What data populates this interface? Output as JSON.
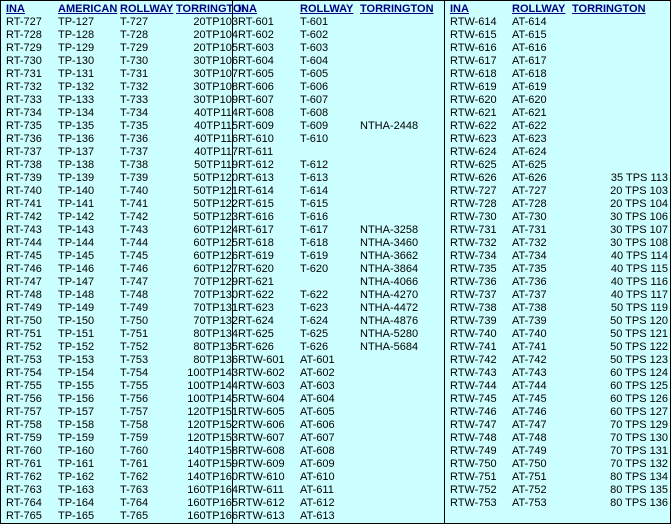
{
  "headers": {
    "ina": "INA",
    "american": "AMERICAN",
    "rollway": "ROLLWAY",
    "torrington": "TORRINGTON"
  },
  "panel1": {
    "columns": [
      "INA",
      "AMERICAN",
      "ROLLWAY",
      "TORRINGTON"
    ],
    "rows": [
      [
        "RT-727",
        "TP-127",
        "T-727",
        "20TP103"
      ],
      [
        "RT-728",
        "TP-128",
        "T-728",
        "20TP104"
      ],
      [
        "RT-729",
        "TP-129",
        "T-729",
        "20TP105"
      ],
      [
        "RT-730",
        "TP-130",
        "T-730",
        "30TP106"
      ],
      [
        "RT-731",
        "TP-131",
        "T-731",
        "30TP107"
      ],
      [
        "RT-732",
        "TP-132",
        "T-732",
        "30TP108"
      ],
      [
        "RT-733",
        "TP-133",
        "T-733",
        "30TP109"
      ],
      [
        "RT-734",
        "TP-134",
        "T-734",
        "40TP114"
      ],
      [
        "RT-735",
        "TP-135",
        "T-735",
        "40TP115"
      ],
      [
        "RT-736",
        "TP-136",
        "T-736",
        "40TP116"
      ],
      [
        "RT-737",
        "TP-137",
        "T-737",
        "40TP117"
      ],
      [
        "RT-738",
        "TP-138",
        "T-738",
        "50TP119"
      ],
      [
        "RT-739",
        "TP-139",
        "T-739",
        "50TP120"
      ],
      [
        "RT-740",
        "TP-140",
        "T-740",
        "50TP121"
      ],
      [
        "RT-741",
        "TP-141",
        "T-741",
        "50TP122"
      ],
      [
        "RT-742",
        "TP-142",
        "T-742",
        "50TP123"
      ],
      [
        "RT-743",
        "TP-143",
        "T-743",
        "60TP124"
      ],
      [
        "RT-744",
        "TP-144",
        "T-744",
        "60TP125"
      ],
      [
        "RT-745",
        "TP-145",
        "T-745",
        "60TP126"
      ],
      [
        "RT-746",
        "TP-146",
        "T-746",
        "60TP127"
      ],
      [
        "RT-747",
        "TP-147",
        "T-747",
        "70TP129"
      ],
      [
        "RT-748",
        "TP-148",
        "T-748",
        "70TP130"
      ],
      [
        "RT-749",
        "TP-149",
        "T-749",
        "70TP131"
      ],
      [
        "RT-750",
        "TP-150",
        "T-750",
        "70TP132"
      ],
      [
        "RT-751",
        "TP-151",
        "T-751",
        "80TP134"
      ],
      [
        "RT-752",
        "TP-152",
        "T-752",
        "80TP135"
      ],
      [
        "RT-753",
        "TP-153",
        "T-753",
        "80TP136"
      ],
      [
        "RT-754",
        "TP-154",
        "T-754",
        "100TP143"
      ],
      [
        "RT-755",
        "TP-155",
        "T-755",
        "100TP144"
      ],
      [
        "RT-756",
        "TP-156",
        "T-756",
        "100TP145"
      ],
      [
        "RT-757",
        "TP-157",
        "T-757",
        "120TP151"
      ],
      [
        "RT-758",
        "TP-158",
        "T-758",
        "120TP152"
      ],
      [
        "RT-759",
        "TP-159",
        "T-759",
        "120TP153"
      ],
      [
        "RT-760",
        "TP-160",
        "T-760",
        "140TP158"
      ],
      [
        "RT-761",
        "TP-161",
        "T-761",
        "140TP159"
      ],
      [
        "RT-762",
        "TP-162",
        "T-762",
        "140TP160"
      ],
      [
        "RT-763",
        "TP-163",
        "T-763",
        "160TP164"
      ],
      [
        "RT-764",
        "TP-164",
        "T-764",
        "160TP165"
      ],
      [
        "RT-765",
        "TP-165",
        "T-765",
        "160TP166"
      ]
    ]
  },
  "panel2": {
    "columns": [
      "INA",
      "ROLLWAY",
      "TORRINGTON"
    ],
    "rows": [
      [
        "RT-601",
        "T-601",
        ""
      ],
      [
        "RT-602",
        "T-602",
        ""
      ],
      [
        "RT-603",
        "T-603",
        ""
      ],
      [
        "RT-604",
        "T-604",
        ""
      ],
      [
        "RT-605",
        "T-605",
        ""
      ],
      [
        "RT-606",
        "T-606",
        ""
      ],
      [
        "RT-607",
        "T-607",
        ""
      ],
      [
        "RT-608",
        "T-608",
        ""
      ],
      [
        "RT-609",
        "T-609",
        "NTHA-2448"
      ],
      [
        "RT-610",
        "T-610",
        ""
      ],
      [
        "RT-611",
        "",
        ""
      ],
      [
        "RT-612",
        "T-612",
        ""
      ],
      [
        "RT-613",
        "T-613",
        ""
      ],
      [
        "RT-614",
        "T-614",
        ""
      ],
      [
        "RT-615",
        "T-615",
        ""
      ],
      [
        "RT-616",
        "T-616",
        ""
      ],
      [
        "RT-617",
        "T-617",
        "NTHA-3258"
      ],
      [
        "RT-618",
        "T-618",
        "NTHA-3460"
      ],
      [
        "RT-619",
        "T-619",
        "NTHA-3662"
      ],
      [
        "RT-620",
        "T-620",
        "NTHA-3864"
      ],
      [
        "RT-621",
        "",
        "NTHA-4066"
      ],
      [
        "RT-622",
        "T-622",
        "NTHA-4270"
      ],
      [
        "RT-623",
        "T-623",
        "NTHA-4472"
      ],
      [
        "RT-624",
        "T-624",
        "NTHA-4876"
      ],
      [
        "RT-625",
        "T-625",
        "NTHA-5280"
      ],
      [
        "RT-626",
        "T-626",
        "NTHA-5684"
      ],
      [
        "RTW-601",
        "AT-601",
        ""
      ],
      [
        "RTW-602",
        "AT-602",
        ""
      ],
      [
        "RTW-603",
        "AT-603",
        ""
      ],
      [
        "RTW-604",
        "AT-604",
        ""
      ],
      [
        "RTW-605",
        "AT-605",
        ""
      ],
      [
        "RTW-606",
        "AT-606",
        ""
      ],
      [
        "RTW-607",
        "AT-607",
        ""
      ],
      [
        "RTW-608",
        "AT-608",
        ""
      ],
      [
        "RTW-609",
        "AT-609",
        ""
      ],
      [
        "RTW-610",
        "AT-610",
        ""
      ],
      [
        "RTW-611",
        "AT-611",
        ""
      ],
      [
        "RTW-612",
        "AT-612",
        ""
      ],
      [
        "RTW-613",
        "AT-613",
        ""
      ]
    ]
  },
  "panel3": {
    "columns": [
      "INA",
      "ROLLWAY",
      "TORRINGTON"
    ],
    "rows": [
      [
        "RTW-614",
        "AT-614",
        ""
      ],
      [
        "RTW-615",
        "AT-615",
        ""
      ],
      [
        "RTW-616",
        "AT-616",
        ""
      ],
      [
        "RTW-617",
        "AT-617",
        ""
      ],
      [
        "RTW-618",
        "AT-618",
        ""
      ],
      [
        "RTW-619",
        "AT-619",
        ""
      ],
      [
        "RTW-620",
        "AT-620",
        ""
      ],
      [
        "RTW-621",
        "AT-621",
        ""
      ],
      [
        "RTW-622",
        "AT-622",
        ""
      ],
      [
        "RTW-623",
        "AT-623",
        ""
      ],
      [
        "RTW-624",
        "AT-624",
        ""
      ],
      [
        "RTW-625",
        "AT-625",
        ""
      ],
      [
        "RTW-626",
        "AT-626",
        "35 TPS 113"
      ],
      [
        "RTW-727",
        "AT-727",
        "20 TPS 103"
      ],
      [
        "RTW-728",
        "AT-728",
        "20 TPS 104"
      ],
      [
        "RTW-730",
        "AT-730",
        "30 TPS 106"
      ],
      [
        "RTW-731",
        "AT-731",
        "30 TPS 107"
      ],
      [
        "RTW-732",
        "AT-732",
        "30 TPS 108"
      ],
      [
        "RTW-734",
        "AT-734",
        "40 TPS 114"
      ],
      [
        "RTW-735",
        "AT-735",
        "40 TPS 115"
      ],
      [
        "RTW-736",
        "AT-736",
        "40 TPS 116"
      ],
      [
        "RTW-737",
        "AT-737",
        "40 TPS 117"
      ],
      [
        "RTW-738",
        "AT-738",
        "50 TPS 119"
      ],
      [
        "RTW-739",
        "AT-739",
        "50 TPS 120"
      ],
      [
        "RTW-740",
        "AT-740",
        "50 TPS 121"
      ],
      [
        "RTW-741",
        "AT-741",
        "50 TPS 122"
      ],
      [
        "RTW-742",
        "AT-742",
        "50 TPS 123"
      ],
      [
        "RTW-743",
        "AT-743",
        "60 TPS 124"
      ],
      [
        "RTW-744",
        "AT-744",
        "60 TPS 125"
      ],
      [
        "RTW-745",
        "AT-745",
        "60 TPS 126"
      ],
      [
        "RTW-746",
        "AT-746",
        "60 TPS 127"
      ],
      [
        "RTW-747",
        "AT-747",
        "70 TPS 129"
      ],
      [
        "RTW-748",
        "AT-748",
        "70 TPS 130"
      ],
      [
        "RTW-749",
        "AT-749",
        "70 TPS 131"
      ],
      [
        "RTW-750",
        "AT-750",
        "70 TPS 132"
      ],
      [
        "RTW-751",
        "AT-751",
        "80 TPS 134"
      ],
      [
        "RTW-752",
        "AT-752",
        "80 TPS 135"
      ],
      [
        "RTW-753",
        "AT-753",
        "80 TPS 136"
      ]
    ]
  }
}
